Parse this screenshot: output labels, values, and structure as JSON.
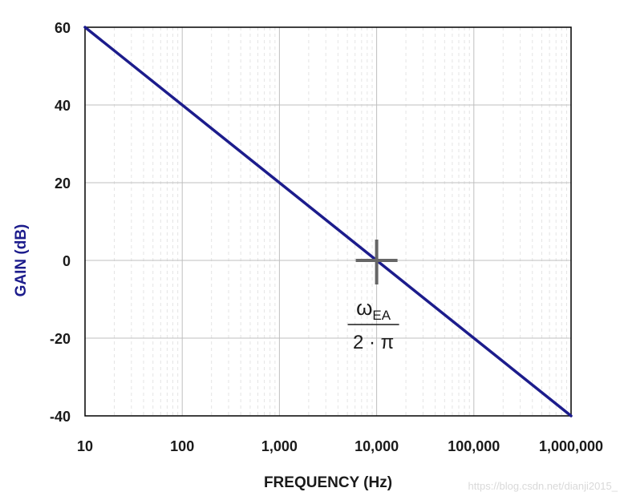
{
  "chart_data": {
    "type": "line",
    "xscale": "log",
    "xlim": [
      10,
      1000000
    ],
    "ylim": [
      -40,
      60
    ],
    "xlabel": "FREQUENCY (Hz)",
    "ylabel": "GAIN (dB)",
    "x_ticks": [
      10,
      100,
      1000,
      10000,
      100000,
      1000000
    ],
    "x_tick_labels": [
      "10",
      "100",
      "1,000",
      "10,000",
      "100,000",
      "1,000,000"
    ],
    "y_ticks": [
      60,
      40,
      20,
      0,
      -20,
      -40
    ],
    "y_tick_labels": [
      "60",
      "40",
      "20",
      "0",
      "-20",
      "-40"
    ],
    "grid": true,
    "series": [
      {
        "x": [
          10,
          1000000
        ],
        "y": [
          60,
          -40
        ],
        "color": "#1c1c8c"
      }
    ],
    "annotation": {
      "marker": "crosshair",
      "x": 10000,
      "y": 0,
      "omega": "ω",
      "subscript": "EA",
      "denominator": "2 · π"
    },
    "colors": {
      "line": "#1c1c8c",
      "ylabel": "#1c1c8c",
      "grid": "#bfbfbf",
      "marker": "#666666"
    }
  },
  "watermark": "https://blog.csdn.net/dianji2015_"
}
